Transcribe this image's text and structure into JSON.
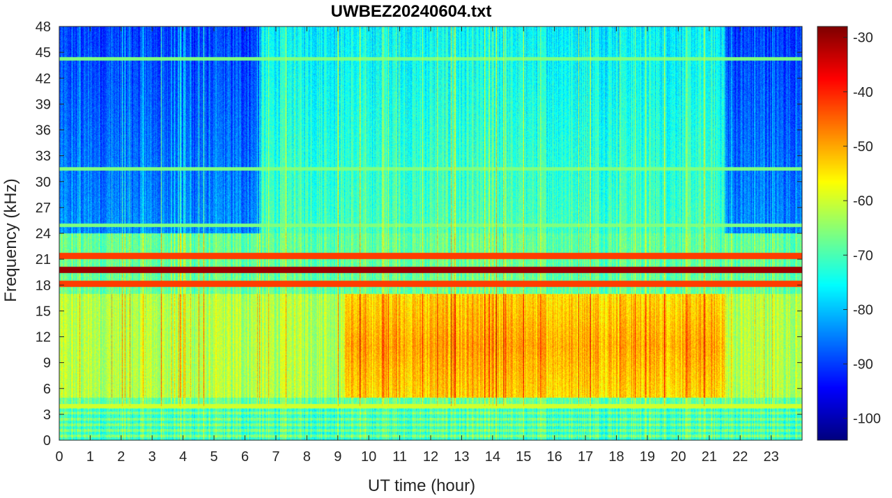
{
  "chart_data": {
    "type": "heatmap",
    "title": "UWBEZ20240604.txt",
    "xlabel": "UT time (hour)",
    "ylabel": "Frequency (kHz)",
    "xlim": [
      0,
      24
    ],
    "ylim": [
      0,
      48
    ],
    "x_ticks": [
      0,
      1,
      2,
      3,
      4,
      5,
      6,
      7,
      8,
      9,
      10,
      11,
      12,
      13,
      14,
      15,
      16,
      17,
      18,
      19,
      20,
      21,
      22,
      23
    ],
    "y_ticks": [
      0,
      3,
      6,
      9,
      12,
      15,
      18,
      21,
      24,
      27,
      30,
      33,
      36,
      39,
      42,
      45,
      48
    ],
    "colorbar": {
      "colormap": "jet",
      "range": [
        -104,
        -28
      ],
      "ticks": [
        -100,
        -90,
        -80,
        -70,
        -60,
        -50,
        -40,
        -30
      ]
    },
    "grid": false,
    "features": {
      "transmitter_lines_khz": [
        19.8,
        18.2,
        21.4
      ],
      "background_band_khz": [
        0,
        4
      ],
      "enhanced_band_khz": [
        5,
        17
      ],
      "enhanced_band_hours": [
        9.2,
        21.5
      ]
    }
  }
}
